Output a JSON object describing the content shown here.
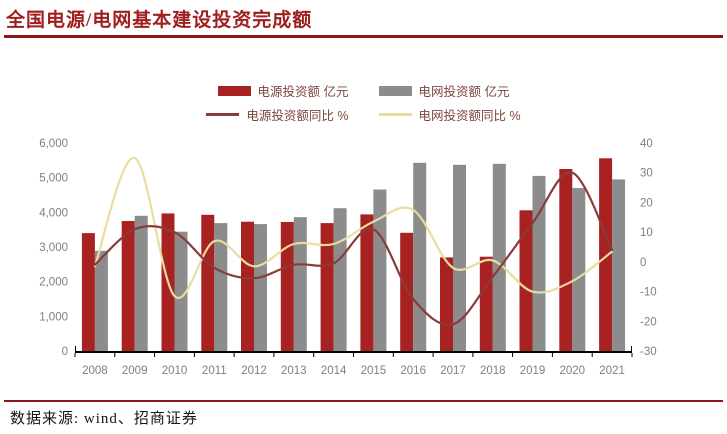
{
  "page": {
    "title": "全国电源/电网基本建设投资完成额",
    "source": "数据来源: wind、招商证券"
  },
  "colors": {
    "title_red": "#9e1f1f",
    "rule_red": "#8e1616",
    "bar_power_red": "#a72220",
    "bar_grid_gray": "#8c8c8c",
    "line_power_yoy": "#8a3b3b",
    "line_grid_yoy": "#e8dda0",
    "axis_text": "#7f7f7f",
    "axis_line": "#000000",
    "legend_text": "#7c453c"
  },
  "chart_data": {
    "type": "bar",
    "subtype": "bar-line-combo",
    "categories": [
      "2008",
      "2009",
      "2010",
      "2011",
      "2012",
      "2013",
      "2014",
      "2015",
      "2016",
      "2017",
      "2018",
      "2019",
      "2020",
      "2021"
    ],
    "series": [
      {
        "name": "电源投资额 亿元",
        "type": "bar",
        "axis": "left",
        "color": "#a72220",
        "values": [
          3400,
          3750,
          3970,
          3930,
          3730,
          3720,
          3690,
          3940,
          3410,
          2700,
          2720,
          4060,
          5250,
          5560
        ]
      },
      {
        "name": "电网投资额 亿元",
        "type": "bar",
        "axis": "left",
        "color": "#8c8c8c",
        "values": [
          2890,
          3900,
          3440,
          3690,
          3660,
          3860,
          4120,
          4660,
          5430,
          5370,
          5400,
          5050,
          4700,
          4950
        ]
      },
      {
        "name": "电源投资额同比 %",
        "type": "line",
        "axis": "right",
        "color": "#8a3b3b",
        "values": [
          -1,
          11,
          10,
          -2,
          -5.5,
          -1,
          -0.5,
          11,
          -12.5,
          -21,
          -5,
          13,
          30,
          4
        ]
      },
      {
        "name": "电网投资额同比 %",
        "type": "line",
        "axis": "right",
        "color": "#e8dda0",
        "values": [
          -1.5,
          35,
          -11.5,
          7,
          -1.5,
          6,
          6,
          13.5,
          17.5,
          -2,
          0.5,
          -10,
          -6.5,
          3.5
        ]
      }
    ],
    "left_axis": {
      "min": 0,
      "max": 6000,
      "step": 1000,
      "tick_labels": [
        "0",
        "1,000",
        "2,000",
        "3,000",
        "4,000",
        "5,000",
        "6,000"
      ]
    },
    "right_axis": {
      "min": -30,
      "max": 40,
      "step": 10,
      "tick_labels": [
        "-30",
        "-20",
        "-10",
        "0",
        "10",
        "20",
        "30",
        "40"
      ]
    },
    "grid": false,
    "legend_position": "top-center"
  }
}
